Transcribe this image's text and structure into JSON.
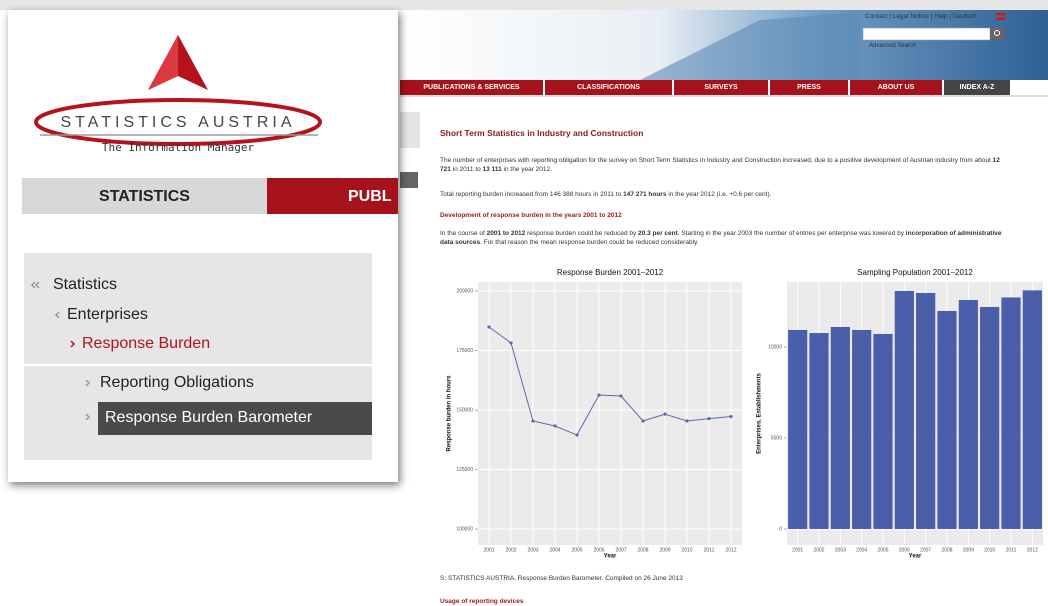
{
  "header": {
    "top_links": "Contact | Legal Notice | Help | Deutsch",
    "advanced_search": "Advanced Search",
    "nav": [
      "PUBLICATIONS & SERVICES",
      "CLASSIFICATIONS",
      "SURVEYS",
      "PRESS",
      "ABOUT US",
      "INDEX A-Z"
    ]
  },
  "sidebar": {
    "logo_title": "STATISTICS AUSTRIA",
    "logo_tagline": "The Information Manager",
    "tabs": [
      "STATISTICS",
      "PUBL"
    ],
    "breadcrumb": [
      "Statistics",
      "Enterprises",
      "Response Burden"
    ],
    "subnav": [
      "Reporting Obligations",
      "Response Burden Barometer"
    ]
  },
  "article": {
    "title": "Short Term Statistics in Industry and Construction",
    "paragraphs": [
      {
        "runs": [
          {
            "text": "The number of enterprises with reporting obligation for the survey on Short Term Statistics in Industry and Construction increased, due to a positive development of Austrian industry from about "
          },
          {
            "strong": "12 721"
          },
          {
            "text": " in 2011 to "
          },
          {
            "strong": "13 111"
          },
          {
            "text": " in the year 2012."
          }
        ]
      },
      {
        "runs": [
          {
            "text": "Total reporting burden increased from 146 388 hours in 2011 to "
          },
          {
            "strong": "147 271 hours"
          },
          {
            "text": " in the year 2012 (i.e. +0.6 per cent)."
          }
        ]
      },
      {
        "runs": [
          {
            "text": "In the course of "
          },
          {
            "strong": "2001 to 2012"
          },
          {
            "text": " response burden could be reduced by "
          },
          {
            "strong": "20.3 per cent"
          },
          {
            "text": ". Starting in the year 2003 the number of entries per enterprise was lowered by "
          },
          {
            "strong": "incorporation of administrative data sources"
          },
          {
            "text": ". For that reason the mean response burden could be reduced considerably."
          }
        ]
      }
    ],
    "subheading": "Development of response burden in the years 2001 to 2012",
    "source": "S: STATISTICS AUSTRIA, Response Burden Barometer. Compiled on 26 June 2013",
    "heading2": "Usage of reporting devices"
  },
  "chart_data": [
    {
      "type": "line",
      "title": "Response Burden 2001–2012",
      "x_label": "Year",
      "y_label": "Response burden in hours",
      "categories": [
        "2001",
        "2002",
        "2003",
        "2004",
        "2005",
        "2006",
        "2007",
        "2008",
        "2009",
        "2010",
        "2011",
        "2012"
      ],
      "values": [
        184900,
        178200,
        145400,
        143300,
        139500,
        156300,
        155900,
        145400,
        148300,
        145400,
        146388,
        147271
      ],
      "color": "#5b6bb0",
      "ylim": [
        93300,
        203800
      ],
      "yticks": [
        100000,
        125000,
        150000,
        175000,
        200000
      ],
      "grid": true
    },
    {
      "type": "bar",
      "title": "Sampling Population 2001–2012",
      "x_label": "Year",
      "y_label": "Enterprises, Establishments",
      "categories": [
        "2001",
        "2002",
        "2003",
        "2004",
        "2005",
        "2006",
        "2007",
        "2008",
        "2009",
        "2010",
        "2011",
        "2012"
      ],
      "values": [
        10934,
        10769,
        11099,
        10934,
        10714,
        13077,
        12967,
        11978,
        12582,
        12198,
        12721,
        13111
      ],
      "color": "#4b5ea9",
      "ylim": [
        -880,
        13570
      ],
      "yticks": [
        0,
        5000,
        10000
      ],
      "grid": true
    }
  ]
}
